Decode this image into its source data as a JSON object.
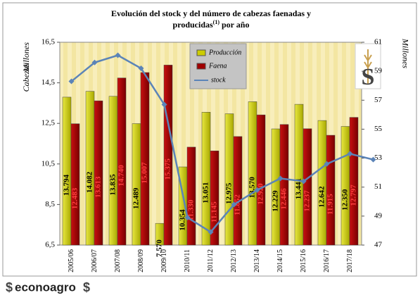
{
  "chart_data": {
    "type": "bar-line",
    "title": {
      "line1": "Evolución del stock y del número de cabezas faenadas y",
      "line2": "producidas",
      "footnote_mark": "(1)",
      "line2_end": "por año"
    },
    "y_label": "Cabezas",
    "y_unit": "Millones",
    "y2_unit": "Millones",
    "categories": [
      "2005/06",
      "2006/07",
      "2007/08",
      "2008/09",
      "2009/10",
      "2010/11",
      "2011/12",
      "2012/13",
      "2013/14",
      "2014/15",
      "2015/16",
      "2016/17",
      "2017/18",
      null
    ],
    "ylim": [
      6.5,
      16.5
    ],
    "yticks": [
      {
        "value": 6.5,
        "label": "6,5"
      },
      {
        "value": 8.5,
        "label": "8,5"
      },
      {
        "value": 10.5,
        "label": "10,5"
      },
      {
        "value": 12.5,
        "label": "12,5"
      },
      {
        "value": 14.5,
        "label": "14,5"
      },
      {
        "value": 16.5,
        "label": "16,5"
      }
    ],
    "y2lim": [
      47,
      61
    ],
    "y2ticks": [
      47,
      49,
      51,
      53,
      55,
      57,
      59,
      61
    ],
    "series": [
      {
        "name": "Producción",
        "kind": "bar",
        "color": "#cccc00",
        "values": [
          13.794,
          14.082,
          13.835,
          12.489,
          7.57,
          10.354,
          13.051,
          12.975,
          13.57,
          12.229,
          13.441,
          12.642,
          12.35,
          null
        ],
        "value_labels": [
          "13.794",
          "14.082",
          "13.835",
          "12.489",
          "7.570",
          "10.354",
          "13.051",
          "12.975",
          "13.570",
          "12.229",
          "13.441",
          "12.642",
          "12.350",
          null
        ]
      },
      {
        "name": "Faena",
        "kind": "bar",
        "color": "#a00000",
        "values": [
          12.483,
          13.613,
          14.74,
          15.007,
          15.375,
          11.33,
          11.145,
          11.852,
          12.92,
          12.446,
          12.237,
          11.915,
          12.797,
          null
        ],
        "value_labels": [
          "12.483",
          "13.613",
          "14.740",
          "15.007",
          "15.375",
          "11.330",
          "11.145",
          "11.852",
          "12.920",
          "12.446",
          "12.237",
          "11.915",
          "12.797",
          null
        ]
      },
      {
        "name": "stock",
        "kind": "line",
        "axis": "y2",
        "color": "#5b84b8",
        "values": [
          58.3,
          59.6,
          60.1,
          59.2,
          56.7,
          48.9,
          47.9,
          49.8,
          50.8,
          51.6,
          51.4,
          52.6,
          53.3,
          52.9
        ]
      }
    ],
    "brand": "econoagro",
    "brand_symbol": "$"
  }
}
